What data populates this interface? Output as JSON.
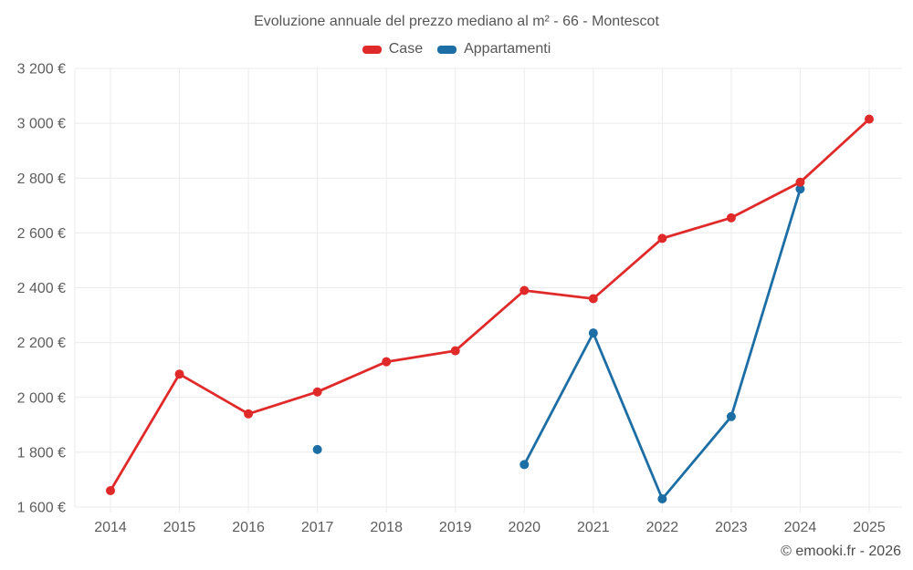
{
  "chart_data": {
    "type": "line",
    "title": "Evoluzione annuale del prezzo mediano al m² - 66 - Montescot",
    "x_labels": [
      "2014",
      "2015",
      "2016",
      "2017",
      "2018",
      "2019",
      "2020",
      "2021",
      "2022",
      "2023",
      "2024",
      "2025"
    ],
    "series": [
      {
        "name": "Case",
        "color": "#e02a2a",
        "values": [
          1660,
          2085,
          1940,
          2020,
          2130,
          2170,
          2390,
          2360,
          2580,
          2655,
          2785,
          3015
        ]
      },
      {
        "name": "Appartamenti",
        "color": "#1c6ea4",
        "values": [
          null,
          null,
          null,
          1810,
          null,
          null,
          1755,
          2235,
          1630,
          1930,
          2760,
          null
        ]
      }
    ],
    "ylim": [
      1600,
      3200
    ],
    "y_tick_step": 200,
    "y_tick_labels": [
      "1 600 €",
      "1 800 €",
      "2 000 €",
      "2 200 €",
      "2 400 €",
      "2 600 €",
      "2 800 €",
      "3 000 €",
      "3 200 €"
    ],
    "grid": true,
    "legend_position": "top",
    "footer": "© emooki.fr - 2026",
    "colors": {
      "grid": "#ebebeb",
      "tick_text": "#5d5d5d",
      "background": "#ffffff"
    }
  }
}
